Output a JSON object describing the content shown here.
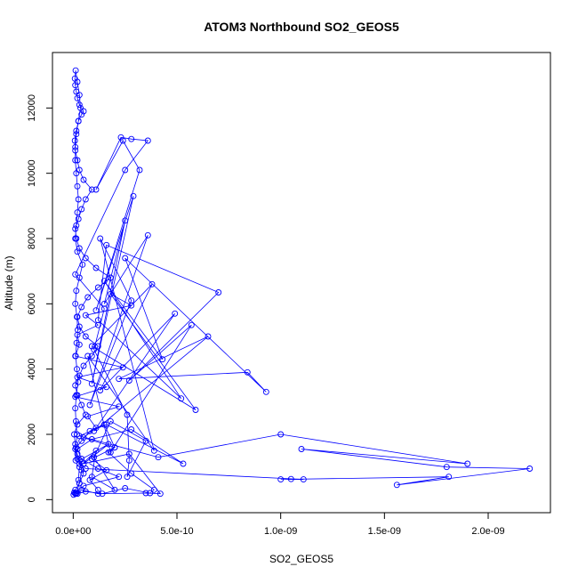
{
  "chart_data": {
    "type": "line",
    "title": "ATOM3 Northbound SO2_GEOS5",
    "xlabel": "SO2_GEOS5",
    "ylabel": "Altitude (m)",
    "xlim": [
      -1e-10,
      2.3e-09
    ],
    "ylim": [
      -400,
      13700
    ],
    "x_ticks": [
      0,
      5e-10,
      1e-09,
      1.5e-09,
      2e-09
    ],
    "x_tick_labels": [
      "0.0e+00",
      "5.0e-10",
      "1.0e-09",
      "1.5e-09",
      "2.0e-09"
    ],
    "y_ticks": [
      0,
      2000,
      4000,
      6000,
      8000,
      10000,
      12000
    ],
    "y_tick_labels": [
      "0",
      "2000",
      "4000",
      "6000",
      "8000",
      "10000",
      "12000"
    ],
    "grid": false,
    "legend": "none",
    "color": "#0000ff",
    "marker": "open-circle",
    "series": [
      {
        "x": [
          2e-12,
          1e-11,
          3e-11,
          5e-11,
          3e-11,
          2e-11,
          1e-11,
          5e-12,
          2e-11,
          6e-11,
          4e-11,
          2e-11,
          1e-11,
          3e-11,
          5e-11,
          9e-11,
          1.2e-10,
          6e-11,
          3e-11,
          2e-11,
          4e-11,
          7e-11,
          1.2e-10,
          1.8e-10,
          1.1e-10,
          6e-11,
          3e-11,
          1.5e-11,
          1e-11,
          2.5e-11,
          4e-11,
          6e-11,
          9e-11,
          5e-11,
          3e-11,
          2e-11,
          1e-11,
          8e-12,
          1.5e-11,
          2.5e-11,
          4e-11,
          5e-11,
          3e-11,
          2e-11,
          1.5e-11,
          1e-11,
          8e-12,
          1.2e-11,
          2e-11,
          3e-11,
          3.5e-11,
          2.5e-11,
          1.5e-11,
          1e-11,
          1e-11,
          1.5e-11,
          2e-11,
          2.5e-11,
          2e-11,
          1.5e-11,
          1e-11,
          2e-11,
          4.5e-11,
          3e-11,
          1.5e-11,
          1e-11,
          1.8e-11,
          2.2e-11,
          1.6e-11,
          1.2e-11,
          1.8e-11,
          2.4e-11,
          1.5e-11,
          1e-11,
          1.3e-11,
          1.8e-11,
          1.4e-11,
          1.2e-11
        ],
        "y": [
          150,
          300,
          500,
          800,
          1100,
          1400,
          1700,
          2000,
          2300,
          2600,
          2900,
          3200,
          3500,
          3800,
          4100,
          4400,
          4700,
          5000,
          5300,
          5600,
          5900,
          6200,
          6500,
          6800,
          7100,
          7400,
          7700,
          8000,
          8300,
          8600,
          8900,
          9200,
          9500,
          9800,
          10100,
          10400,
          10700,
          11000,
          11300,
          11600,
          11800,
          11900,
          12100,
          12300,
          12500,
          12700,
          12900,
          13150,
          12800,
          12400,
          12000,
          11600,
          11200,
          10800,
          10400,
          10000,
          9600,
          9200,
          8800,
          8400,
          8000,
          7600,
          7200,
          6800,
          6400,
          6000,
          5600,
          5200,
          4800,
          4400,
          4000,
          3600,
          3200,
          2800,
          2400,
          2000,
          1600,
          1200
        ]
      },
      {
        "x": [
          1.2e-10,
          8e-11,
          1.6e-10,
          9e-11,
          2e-10,
          5e-11,
          1.1e-10,
          7e-11,
          2.2e-10,
          1e-11,
          1.6e-10,
          2e-11,
          2.4e-10,
          1e-11,
          3e-11,
          2e-11,
          1.2e-10,
          6e-11,
          2.8e-10,
          1.8e-10,
          5.9e-10,
          9e-11,
          3.8e-10,
          1.3e-10,
          4.9e-10,
          1e-10,
          6.5e-10,
          2.2e-10,
          8.4e-10,
          9.3e-10,
          2.5e-10,
          4.3e-10,
          1.5e-10,
          5.2e-10,
          1.2e-10,
          1.6e-10,
          7e-10,
          2.7e-10,
          5.7e-10,
          1.8e-10,
          7e-11,
          3.9e-10,
          1.3e-10,
          2.8e-10,
          8e-11,
          3.6e-10,
          1.5e-10,
          2.5e-10,
          9e-11,
          2.9e-10,
          1.1e-10,
          3.2e-10,
          2.4e-10,
          1.1e-10,
          2.3e-10,
          2.8e-10,
          3.6e-10,
          2.5e-10,
          1e-11,
          1.5e-10,
          1e-10,
          2.6e-10,
          2.7e-10,
          2.6e-10,
          3.5e-10,
          1.8e-10,
          1e-10,
          2e-10,
          9e-11,
          1.1e-10,
          3e-11,
          2.5e-11
        ],
        "y": [
          300,
          600,
          900,
          1250,
          1600,
          1900,
          2200,
          2550,
          2850,
          3150,
          3450,
          3750,
          4050,
          4400,
          4750,
          5050,
          5350,
          5650,
          5950,
          6300,
          2750,
          4700,
          6600,
          3350,
          5700,
          2100,
          5000,
          3700,
          3900,
          3300,
          7400,
          4300,
          6700,
          3100,
          5500,
          7800,
          6350,
          3650,
          5350,
          1450,
          4400,
          1500,
          8000,
          6100,
          2900,
          8100,
          6000,
          8550,
          3550,
          9300,
          5800,
          10100,
          11000,
          9500,
          11100,
          11050,
          11000,
          10100,
          6900,
          5850,
          4600,
          2600,
          1200,
          700,
          1800,
          2400,
          1300,
          300,
          700,
          1500,
          1000,
          600
        ]
      },
      {
        "x": [
          1e-11,
          5e-11,
          2.2e-10,
          1.2e-10,
          4e-11,
          2e-11,
          9e-11,
          2.8e-10,
          5.3e-10,
          1.6e-10,
          3e-11,
          4.1e-10,
          1e-09,
          1.9e-09,
          1.1e-09,
          1.8e-09,
          2.2e-09,
          1.56e-09,
          1.81e-09,
          1e-09,
          1.05e-09,
          1.11e-09,
          6e-11,
          2e-11,
          1e-11,
          4e-11,
          8e-11,
          1.5e-10,
          2e-10,
          1.7e-10,
          2.8e-10,
          3.9e-10,
          3.7e-10,
          2.5e-10,
          1.4e-10,
          6e-11,
          2e-11,
          5e-12,
          1.5e-11,
          3e-11,
          4e-11,
          3e-11,
          1.7e-10,
          5e-11,
          2.7e-10,
          4.2e-10,
          3.5e-10,
          1.2e-10,
          4e-11,
          2e-11,
          1e-11
        ],
        "y": [
          180,
          420,
          700,
          950,
          1250,
          1550,
          1850,
          2150,
          1100,
          2300,
          1950,
          1300,
          2000,
          1100,
          1550,
          1000,
          950,
          450,
          700,
          620,
          630,
          620,
          950,
          1250,
          1550,
          1800,
          2100,
          2300,
          1600,
          1450,
          800,
          300,
          200,
          350,
          180,
          250,
          180,
          220,
          200,
          500,
          900,
          1200,
          1700,
          1100,
          1400,
          180,
          200,
          180,
          300,
          180,
          200
        ]
      }
    ]
  }
}
